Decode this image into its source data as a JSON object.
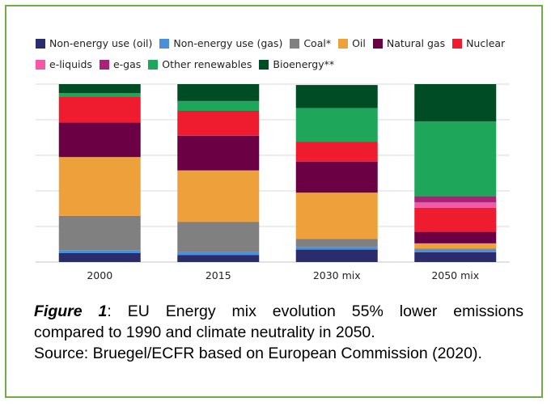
{
  "chart_data": {
    "type": "bar",
    "stacked": true,
    "normalized": true,
    "categories": [
      "2000",
      "2015",
      "2030 mix",
      "2050 mix"
    ],
    "ylim": [
      0,
      100
    ],
    "grid": true,
    "legend_position": "top",
    "series": [
      {
        "name": "Non-energy use (oil)",
        "color": "#2b2c6b",
        "values": [
          5,
          4,
          7,
          5.5
        ]
      },
      {
        "name": "Non-energy use (gas)",
        "color": "#4a8fd8",
        "values": [
          1.5,
          1.5,
          1.5,
          1.5
        ]
      },
      {
        "name": "Coal*",
        "color": "#808080",
        "values": [
          19.5,
          17,
          4.5,
          0.5
        ]
      },
      {
        "name": "Oil",
        "color": "#eea13b",
        "values": [
          33,
          29,
          26,
          3
        ]
      },
      {
        "name": "Natural gas",
        "color": "#6b0045",
        "values": [
          19.5,
          19.5,
          17.5,
          6.5
        ]
      },
      {
        "name": "Nuclear",
        "color": "#ee1c2e",
        "values": [
          14.5,
          14,
          11,
          13.5
        ]
      },
      {
        "name": "e-liquids",
        "color": "#f25aa8",
        "values": [
          0,
          0,
          0,
          3
        ]
      },
      {
        "name": "e-gas",
        "color": "#a82277",
        "values": [
          0,
          0,
          0,
          3.5
        ]
      },
      {
        "name": "Other renewables",
        "color": "#1ea65a",
        "values": [
          2,
          5.5,
          19,
          42
        ]
      },
      {
        "name": "Bioenergy**",
        "color": "#004d25",
        "values": [
          5,
          9.5,
          13,
          21
        ]
      }
    ]
  },
  "caption": {
    "label": "Figure 1",
    "line1_rest": ": EU Energy mix evolution 55% lower emissions",
    "line2": "compared to 1990 and climate neutrality in 2050.",
    "line3": "Source: Bruegel/ECFR based on European Commission (2020)."
  }
}
